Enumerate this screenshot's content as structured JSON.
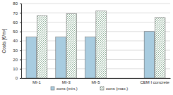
{
  "chart_data": {
    "type": "bar",
    "y_label": "Costs [€/m³]",
    "categories": [
      "MI-1",
      "MI-3",
      "MI-5",
      null,
      "CEM I concrete"
    ],
    "series": [
      {
        "name": "cons (min.)",
        "color": "#a8cce0",
        "values": [
          44,
          44,
          44,
          null,
          50
        ]
      },
      {
        "name": "cons (max.)",
        "color": "#6f9a7c",
        "values": [
          67,
          69,
          72,
          null,
          65
        ]
      }
    ],
    "ylim": [
      0,
      80
    ],
    "yticks": [
      0,
      10,
      20,
      30,
      40,
      50,
      60,
      70,
      80
    ],
    "grid": true,
    "legend": "bottom"
  }
}
